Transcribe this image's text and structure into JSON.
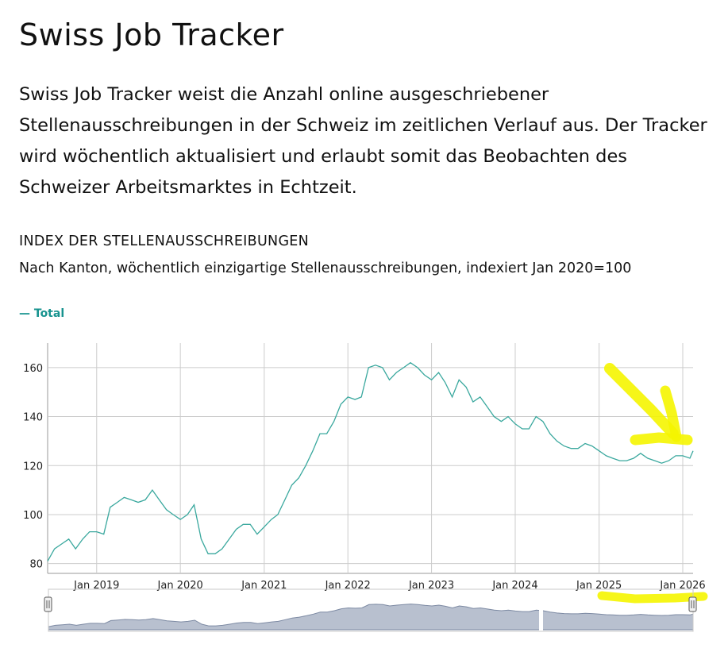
{
  "page": {
    "title": "Swiss Job Tracker",
    "intro": "Swiss Job Tracker weist die Anzahl online ausgeschriebener Stellenausschreibungen in der Schweiz im zeitlichen Verlauf aus. Der Tracker wird wöchentlich aktualisiert und erlaubt somit das Beobachten des Schweizer Arbeitsmarktes in Echtzeit."
  },
  "colors": {
    "line": "#3aa89e",
    "highlight": "#f5f500",
    "grid": "#cccccc",
    "navigator_fill": "#b8c0cf"
  },
  "chart_data": {
    "type": "line",
    "title": "INDEX DER STELLENAUSSCHREIBUNGEN",
    "subtitle": "Nach Kanton, wöchentlich einzigartige Stellenausschreibungen, indexiert Jan 2020=100",
    "legend": [
      "— Total"
    ],
    "legend_position": "top-left",
    "xlabel": "",
    "ylabel": "",
    "grid": true,
    "ylim": [
      76,
      170
    ],
    "xlim": [
      "2018-06-01",
      "2026-02-15"
    ],
    "x_ticks": [
      "Jan 2019",
      "Jan 2020",
      "Jan 2021",
      "Jan 2022",
      "Jan 2023",
      "Jan 2024",
      "Jan 2025",
      "Jan 2026"
    ],
    "y_ticks": [
      80,
      100,
      120,
      140,
      160
    ],
    "series": [
      {
        "name": "Total",
        "x": [
          "2018-06-01",
          "2018-07-01",
          "2018-08-01",
          "2018-09-01",
          "2018-10-01",
          "2018-11-01",
          "2018-12-01",
          "2019-01-01",
          "2019-02-01",
          "2019-03-01",
          "2019-04-01",
          "2019-05-01",
          "2019-06-01",
          "2019-07-01",
          "2019-08-01",
          "2019-09-01",
          "2019-10-01",
          "2019-11-01",
          "2019-12-01",
          "2020-01-01",
          "2020-02-01",
          "2020-03-01",
          "2020-04-01",
          "2020-05-01",
          "2020-06-01",
          "2020-07-01",
          "2020-08-01",
          "2020-09-01",
          "2020-10-01",
          "2020-11-01",
          "2020-12-01",
          "2021-01-01",
          "2021-02-01",
          "2021-03-01",
          "2021-04-01",
          "2021-05-01",
          "2021-06-01",
          "2021-07-01",
          "2021-08-01",
          "2021-09-01",
          "2021-10-01",
          "2021-11-01",
          "2021-12-01",
          "2022-01-01",
          "2022-02-01",
          "2022-03-01",
          "2022-04-01",
          "2022-05-01",
          "2022-06-01",
          "2022-07-01",
          "2022-08-01",
          "2022-09-01",
          "2022-10-01",
          "2022-11-01",
          "2022-12-01",
          "2023-01-01",
          "2023-02-01",
          "2023-03-01",
          "2023-04-01",
          "2023-05-01",
          "2023-06-01",
          "2023-07-01",
          "2023-08-01",
          "2023-09-01",
          "2023-10-01",
          "2023-11-01",
          "2023-12-01",
          "2024-01-01",
          "2024-02-01",
          "2024-03-01",
          "2024-04-01",
          "2024-05-01",
          "2024-06-01",
          "2024-07-01",
          "2024-08-01",
          "2024-09-01",
          "2024-10-01",
          "2024-11-01",
          "2024-12-01",
          "2025-01-01",
          "2025-02-01",
          "2025-03-01",
          "2025-04-01",
          "2025-05-01",
          "2025-06-01",
          "2025-07-01",
          "2025-08-01",
          "2025-09-01",
          "2025-10-01",
          "2025-11-01",
          "2025-12-01",
          "2026-01-01",
          "2026-02-01",
          "2026-02-15"
        ],
        "values": [
          81,
          86,
          88,
          90,
          86,
          90,
          93,
          93,
          92,
          103,
          105,
          107,
          106,
          105,
          106,
          110,
          106,
          102,
          100,
          98,
          100,
          104,
          90,
          84,
          84,
          86,
          90,
          94,
          96,
          96,
          92,
          95,
          98,
          100,
          106,
          112,
          115,
          120,
          126,
          133,
          133,
          138,
          145,
          148,
          147,
          148,
          160,
          161,
          160,
          155,
          158,
          160,
          162,
          160,
          157,
          155,
          158,
          154,
          148,
          155,
          152,
          146,
          148,
          144,
          140,
          138,
          140,
          137,
          135,
          135,
          140,
          138,
          133,
          130,
          128,
          127,
          127,
          129,
          128,
          126,
          124,
          123,
          122,
          122,
          123,
          125,
          123,
          122,
          121,
          122,
          124,
          124,
          123,
          126
        ]
      }
    ]
  }
}
